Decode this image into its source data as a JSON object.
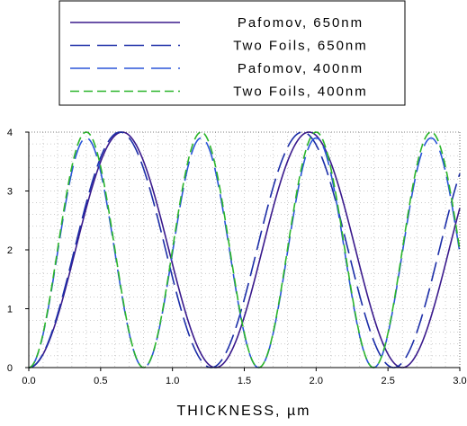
{
  "chart_data": {
    "type": "line",
    "xlabel": "THICKNESS, µm",
    "ylabel": "",
    "xlim": [
      0,
      3.0
    ],
    "ylim": [
      0,
      4
    ],
    "x_ticks": [
      "0.0",
      "0.5",
      "1.0",
      "1.5",
      "2.0",
      "2.5",
      "3.0"
    ],
    "y_ticks": [
      "0",
      "1",
      "2",
      "3",
      "4"
    ],
    "grid": "dotted, minor",
    "legend_position": "top",
    "series": [
      {
        "name": "Pafomov, 650nm",
        "color": "#3a1a8c",
        "style": "solid",
        "period_um": 1.3,
        "phase_um": 0.0,
        "amplitude": 4.0
      },
      {
        "name": "Two Foils, 650nm",
        "color": "#1c2ea8",
        "style": "long-dash",
        "period_um": 1.27,
        "phase_um": 0.0,
        "amplitude": 4.0
      },
      {
        "name": "Pafomov, 400nm",
        "color": "#2a55d9",
        "style": "long-dash",
        "period_um": 0.8,
        "phase_um": 0.0,
        "amplitude": 3.9
      },
      {
        "name": "Two Foils, 400nm",
        "color": "#2bb52b",
        "style": "dash",
        "period_um": 0.8,
        "phase_um": 0.0,
        "amplitude": 4.0
      }
    ]
  }
}
